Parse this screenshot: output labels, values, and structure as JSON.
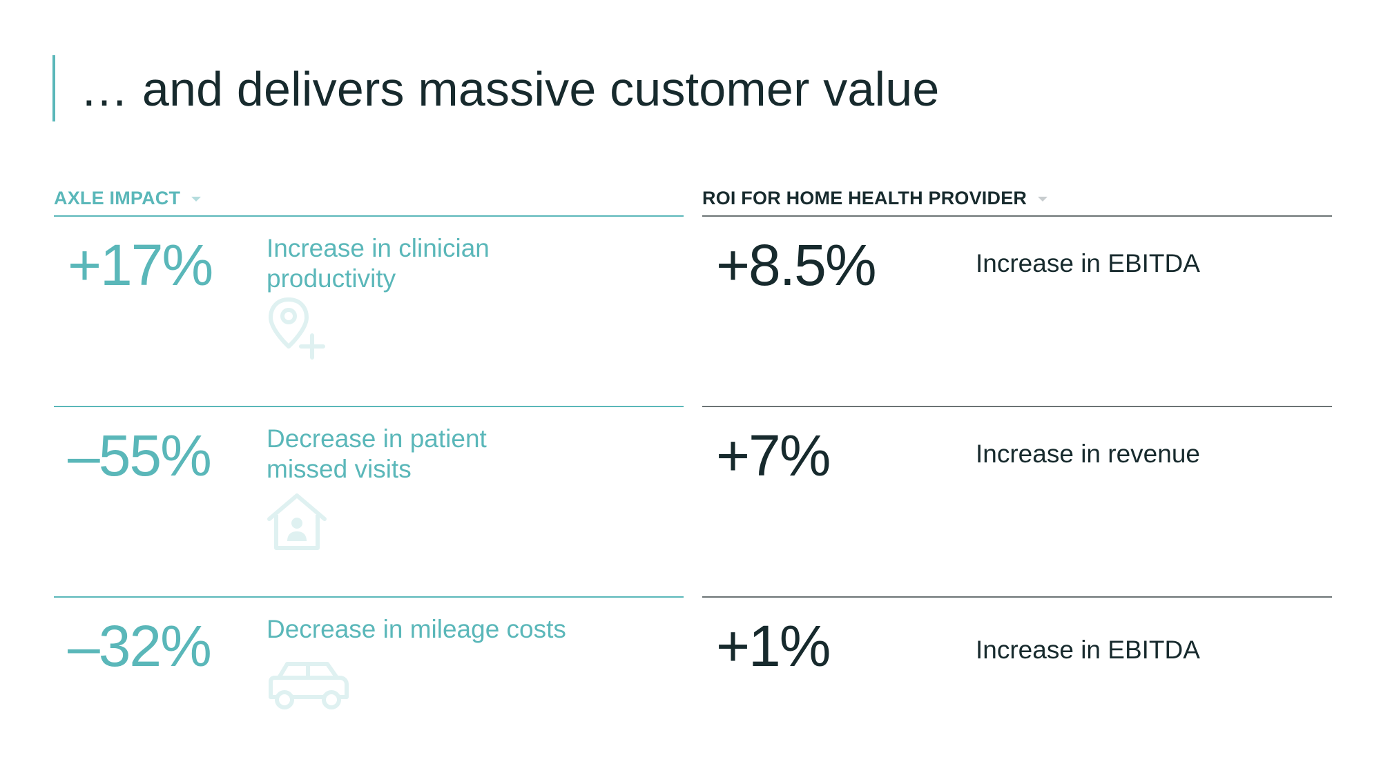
{
  "page": {
    "title": "… and delivers massive customer value"
  },
  "colors": {
    "accent": "#5ab7b9",
    "text": "#172a2d",
    "icon_tint": "#dff1f1"
  },
  "axle_impact": {
    "header": "AXLE IMPACT",
    "rows": [
      {
        "value": "+17%",
        "label_line1": "Increase in clinician",
        "label_line2": "productivity",
        "icon": "location-pin-plus-icon"
      },
      {
        "value": "–55%",
        "label_line1": "Decrease in patient",
        "label_line2": "missed visits",
        "icon": "home-patient-icon"
      },
      {
        "value": "–32%",
        "label_line1": "Decrease in mileage costs",
        "label_line2": "",
        "icon": "car-icon"
      }
    ]
  },
  "roi": {
    "header": "ROI FOR HOME HEALTH PROVIDER",
    "rows": [
      {
        "value": "+8.5%",
        "label": "Increase in EBITDA"
      },
      {
        "value": "+7%",
        "label": "Increase in revenue"
      },
      {
        "value": "+1%",
        "label": "Increase in EBITDA"
      }
    ]
  }
}
